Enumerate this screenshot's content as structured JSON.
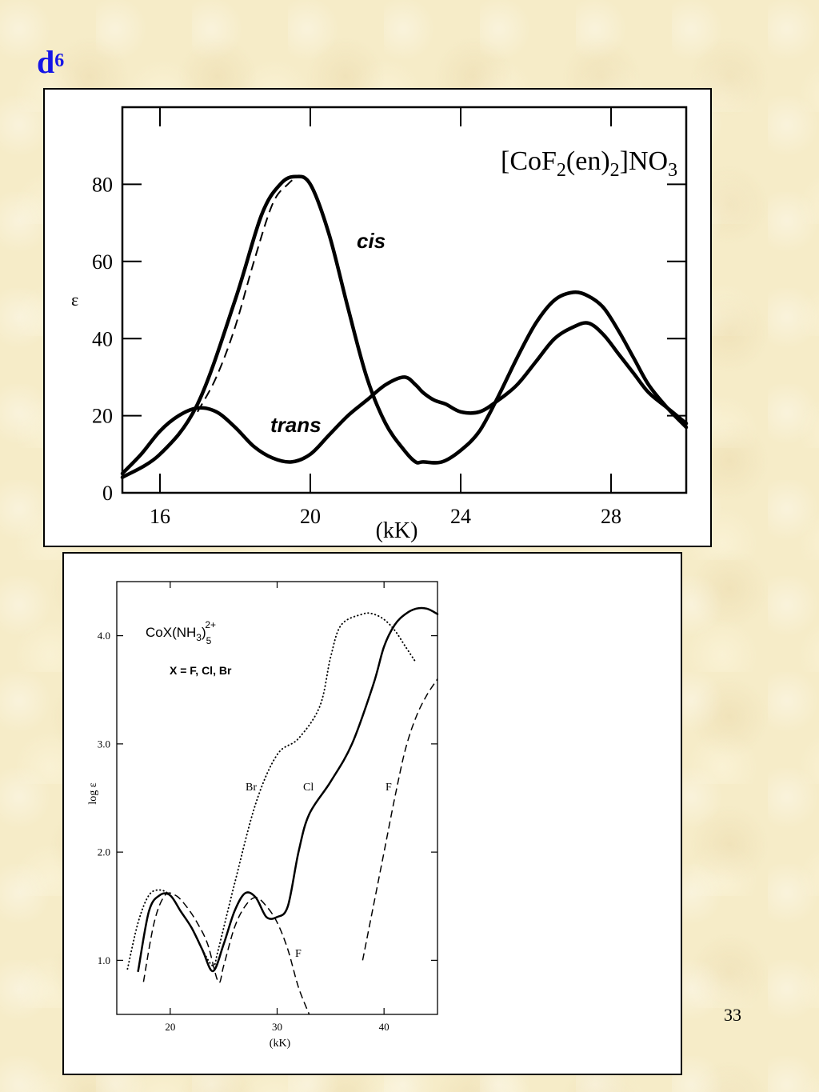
{
  "slide": {
    "title_main": "d",
    "title_sup": "6",
    "page_number": "33"
  },
  "chart_data": [
    {
      "type": "line",
      "title_main": "[CoF",
      "title_sub1": "2",
      "title_mid": "(en)",
      "title_sub2": "2",
      "title_end": "]NO",
      "title_sub3": "3",
      "xlabel": "(kK)",
      "ylabel": "ε",
      "xlim": [
        15,
        30
      ],
      "ylim": [
        0,
        100
      ],
      "xticks": [
        16,
        20,
        24,
        28
      ],
      "yticks": [
        0,
        20,
        40,
        60,
        80
      ],
      "series": [
        {
          "name": "cis",
          "style": "solid-thick",
          "x": [
            15.0,
            16.0,
            17.0,
            18.0,
            18.7,
            19.2,
            19.6,
            20.0,
            20.5,
            21.0,
            21.5,
            22.0,
            22.5,
            22.8,
            23.0,
            23.5,
            24.0,
            24.5,
            25.0,
            25.5,
            26.0,
            26.5,
            27.0,
            27.4,
            27.8,
            28.2,
            28.6,
            29.0,
            29.5,
            30.0
          ],
          "y": [
            4,
            10,
            23,
            50,
            72,
            80,
            82,
            80,
            67,
            48,
            30,
            18,
            11,
            8,
            8,
            8,
            11,
            16,
            25,
            35,
            44,
            50,
            52,
            51,
            48,
            42,
            35,
            28,
            22,
            17
          ]
        },
        {
          "name": "cis (dashed)",
          "style": "dashed",
          "x": [
            17.0,
            17.5,
            18.0,
            18.5,
            19.0,
            19.4,
            19.7,
            20.0
          ],
          "y": [
            21,
            30,
            43,
            60,
            75,
            80,
            82,
            81
          ]
        },
        {
          "name": "trans",
          "style": "solid-thick",
          "x": [
            15.0,
            15.5,
            16.0,
            16.5,
            17.0,
            17.5,
            18.0,
            18.5,
            19.0,
            19.5,
            20.0,
            20.5,
            21.0,
            21.5,
            22.0,
            22.5,
            22.8,
            23.0,
            23.3,
            23.6,
            24.0,
            24.5,
            25.0,
            25.5,
            26.0,
            26.5,
            27.0,
            27.4,
            27.8,
            28.2,
            28.6,
            29.0,
            29.5,
            30.0
          ],
          "y": [
            5,
            10,
            16,
            20,
            22,
            21,
            17,
            12,
            9,
            8,
            10,
            15,
            20,
            24,
            28,
            30,
            28,
            26,
            24,
            23,
            21,
            21,
            24,
            28,
            34,
            40,
            43,
            44,
            41,
            36,
            31,
            26,
            22,
            18
          ]
        }
      ],
      "annotations": [
        "cis",
        "trans"
      ]
    },
    {
      "type": "line",
      "title_main": "CoX(NH",
      "title_sub1": "3",
      "title_end": ")",
      "title_sub2": "5",
      "title_sup": "2+",
      "subtitle": "X = F, Cl, Br",
      "xlabel": "(kK)",
      "ylabel": "log ε",
      "xlim": [
        15,
        45
      ],
      "ylim": [
        0.5,
        4.5
      ],
      "xticks": [
        20,
        30,
        40
      ],
      "yticks": [
        "1.0",
        "2.0",
        "3.0",
        "4.0"
      ],
      "series": [
        {
          "name": "Br",
          "style": "dotted",
          "x": [
            16.0,
            17.0,
            18.0,
            19.0,
            20.0,
            21.0,
            22.0,
            23.0,
            24.0,
            24.5,
            26.0,
            28.0,
            30.0,
            32.0,
            34.0,
            35.0,
            36.0,
            38.0,
            39.0,
            40.0,
            41.0,
            42.0,
            43.0
          ],
          "y": [
            0.92,
            1.35,
            1.6,
            1.65,
            1.6,
            1.45,
            1.3,
            1.1,
            0.95,
            1.1,
            1.7,
            2.45,
            2.9,
            3.05,
            3.35,
            3.8,
            4.1,
            4.2,
            4.2,
            4.15,
            4.05,
            3.9,
            3.75
          ]
        },
        {
          "name": "Cl",
          "style": "solid",
          "x": [
            17.0,
            18.0,
            19.0,
            20.0,
            21.0,
            22.0,
            23.0,
            24.0,
            25.0,
            26.0,
            27.0,
            28.0,
            29.0,
            30.0,
            31.0,
            32.0,
            33.0,
            35.0,
            37.0,
            39.0,
            40.0,
            41.0,
            42.0,
            43.0,
            44.0,
            45.0
          ],
          "y": [
            0.9,
            1.45,
            1.6,
            1.6,
            1.45,
            1.3,
            1.1,
            0.9,
            1.15,
            1.45,
            1.62,
            1.58,
            1.4,
            1.4,
            1.5,
            2.0,
            2.35,
            2.65,
            3.0,
            3.55,
            3.9,
            4.1,
            4.2,
            4.25,
            4.25,
            4.2
          ]
        },
        {
          "name": "F",
          "style": "dashed",
          "x": [
            17.5,
            18.5,
            19.5,
            20.5,
            21.5,
            22.5,
            23.5,
            24.5,
            25.0,
            26.0,
            27.0,
            28.0,
            29.0,
            30.0,
            31.0,
            32.0,
            33.0
          ],
          "y": [
            0.8,
            1.35,
            1.6,
            1.6,
            1.5,
            1.35,
            1.15,
            0.8,
            0.95,
            1.3,
            1.5,
            1.58,
            1.5,
            1.35,
            1.1,
            0.75,
            0.5
          ]
        },
        {
          "name": "F (high energy)",
          "style": "dashed",
          "x": [
            38.0,
            39.0,
            40.0,
            41.0,
            42.0,
            43.0,
            44.0,
            45.0
          ],
          "y": [
            1.0,
            1.5,
            2.0,
            2.5,
            2.95,
            3.25,
            3.45,
            3.6
          ]
        }
      ],
      "annotations": [
        "Br",
        "Cl",
        "F",
        "F"
      ]
    }
  ]
}
